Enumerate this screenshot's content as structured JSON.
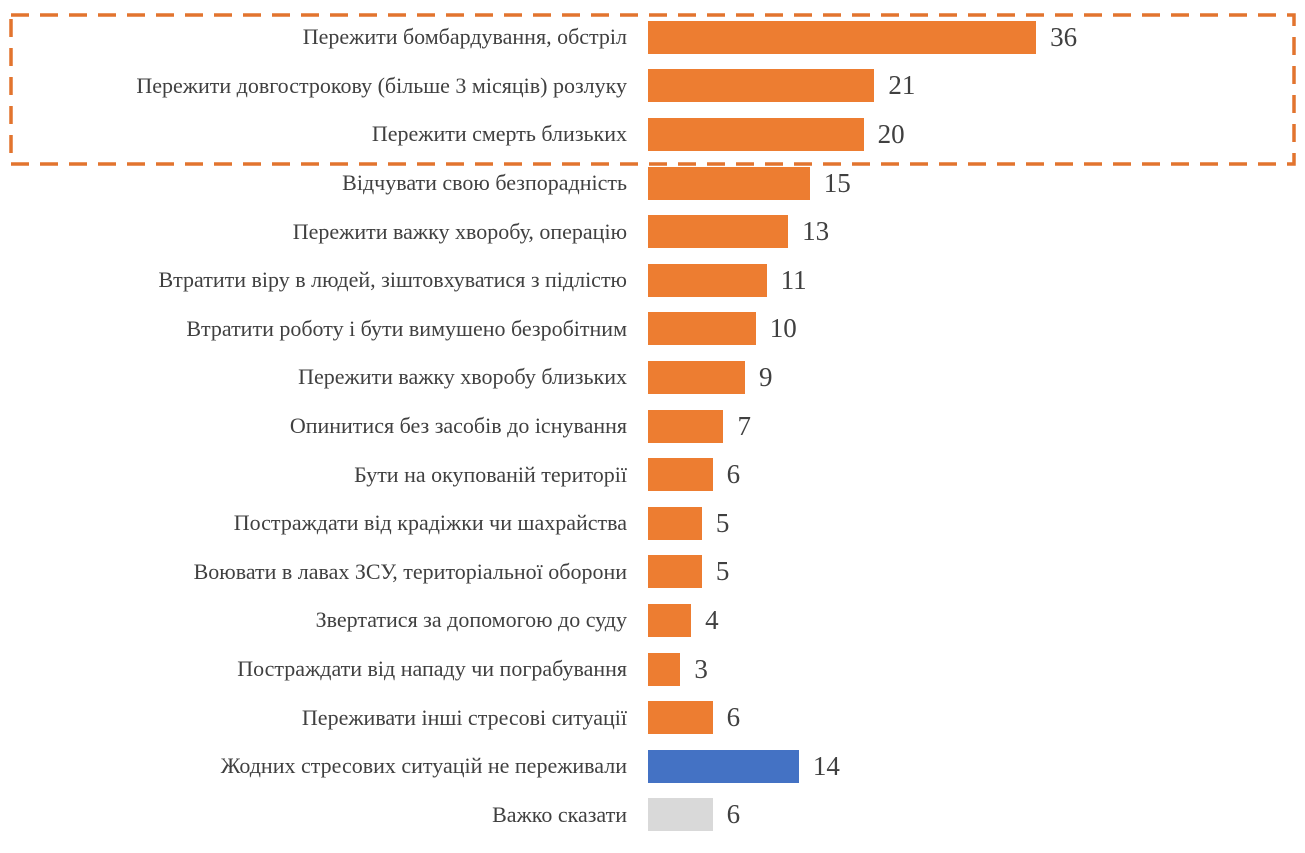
{
  "chart_data": {
    "type": "bar",
    "orientation": "horizontal",
    "title": "",
    "xlabel": "",
    "ylabel": "",
    "grid": false,
    "legend": false,
    "value_labels_shown": true,
    "xlim": [
      0,
      60
    ],
    "colors": {
      "orange": "#ED7D31",
      "blue": "#4472C4",
      "gray": "#D9D9D9"
    },
    "text_color": "#404040",
    "rows": [
      {
        "label": "Пережити бомбардування, обстріл",
        "value": 36,
        "color": "orange"
      },
      {
        "label": "Пережити довгострокову (більше 3 місяців) розлуку",
        "value": 21,
        "color": "orange"
      },
      {
        "label": "Пережити смерть близьких",
        "value": 20,
        "color": "orange"
      },
      {
        "label": "Відчувати свою безпорадність",
        "value": 15,
        "color": "orange"
      },
      {
        "label": "Пережити важку хворобу, операцію",
        "value": 13,
        "color": "orange"
      },
      {
        "label": "Втратити віру в людей, зіштовхуватися з підлістю",
        "value": 11,
        "color": "orange"
      },
      {
        "label": "Втратити роботу і бути вимушено безробітним",
        "value": 10,
        "color": "orange"
      },
      {
        "label": "Пережити важку хворобу близьких",
        "value": 9,
        "color": "orange"
      },
      {
        "label": "Опинитися без засобів до існування",
        "value": 7,
        "color": "orange"
      },
      {
        "label": "Бути на окупованій території",
        "value": 6,
        "color": "orange"
      },
      {
        "label": "Постраждати від крадіжки чи шахрайства",
        "value": 5,
        "color": "orange"
      },
      {
        "label": "Воювати в лавах ЗСУ, територіальної оборони",
        "value": 5,
        "color": "orange"
      },
      {
        "label": "Звертатися за допомогою до суду",
        "value": 4,
        "color": "orange"
      },
      {
        "label": "Постраждати від нападу чи пограбування",
        "value": 3,
        "color": "orange"
      },
      {
        "label": "Переживати інші стресові ситуації",
        "value": 6,
        "color": "orange"
      },
      {
        "label": "Жодних стресових ситуацій не переживали",
        "value": 14,
        "color": "blue"
      },
      {
        "label": "Важко сказати",
        "value": 6,
        "color": "gray"
      }
    ],
    "highlight_box": {
      "encloses_rows": [
        1,
        2,
        3
      ],
      "border_color": "#E2742E",
      "style": "dashed"
    }
  }
}
